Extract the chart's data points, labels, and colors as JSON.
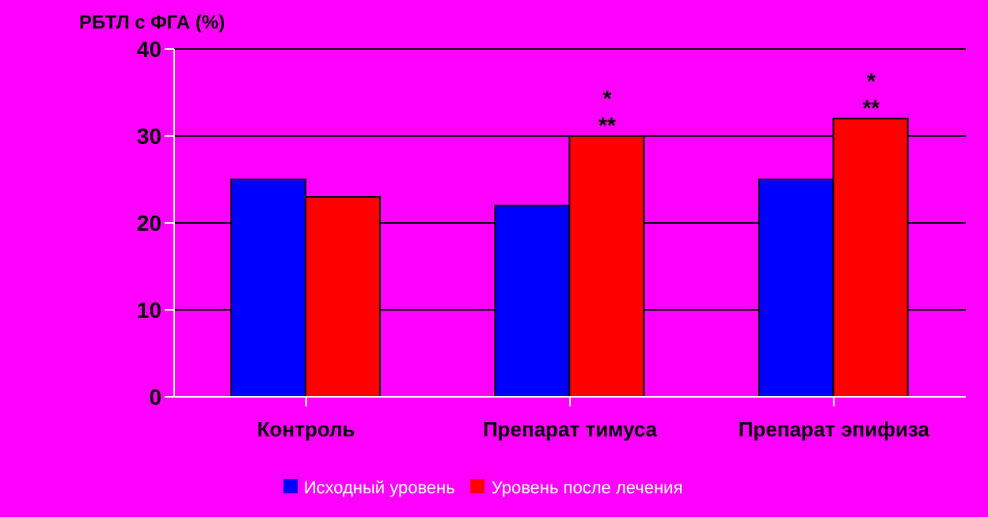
{
  "chart_data": {
    "type": "bar",
    "ylabel": "РБТЛ с ФГА (%)",
    "categories": [
      "Контроль",
      "Препарат тимуса",
      "Препарат эпифиза"
    ],
    "series": [
      {
        "name": "Исходный уровень",
        "color": "#0000ff",
        "values": [
          25,
          22,
          25
        ]
      },
      {
        "name": "Уровень после лечения",
        "color": "#ff0000",
        "values": [
          23,
          30,
          32
        ]
      }
    ],
    "ylim": [
      0,
      40
    ],
    "yticks": [
      0,
      10,
      20,
      30,
      40
    ],
    "grid": "y",
    "legend": "bottom",
    "annotations": [
      {
        "text": "**",
        "x": "Препарат тимуса",
        "y": 30
      },
      "*",
      {
        "text": "**",
        "x": "Препарат эпифиза",
        "y": 32
      },
      "*"
    ]
  }
}
